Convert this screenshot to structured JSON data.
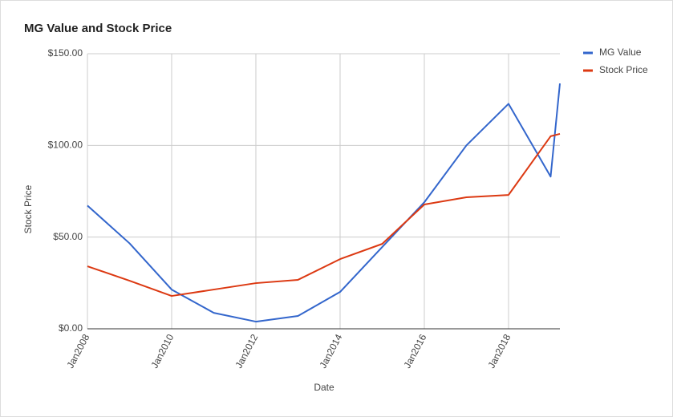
{
  "chart_data": {
    "type": "line",
    "title": "MG Value and Stock Price",
    "x_label": "Date",
    "y_label": "Stock Price",
    "x": [
      2008,
      2009,
      2010,
      2011,
      2012,
      2013,
      2014,
      2015,
      2016,
      2017,
      2018,
      2019,
      2019.22
    ],
    "series": [
      {
        "name": "MG Value",
        "color": "#3366cc",
        "values": [
          67.2,
          46.6,
          21.4,
          8.7,
          3.9,
          7,
          20.1,
          44.6,
          69,
          100,
          122.7,
          83,
          133.8
        ]
      },
      {
        "name": "Stock Price",
        "color": "#dc3912",
        "values": [
          34.1,
          26.2,
          17.9,
          21.4,
          24.9,
          26.7,
          38,
          46.3,
          67.8,
          71.7,
          73,
          105,
          106.3
        ]
      }
    ],
    "xlim": [
      2008,
      2019.22
    ],
    "xticks": [
      {
        "value": 2008,
        "label": "Jan2008"
      },
      {
        "value": 2010,
        "label": "Jan2010"
      },
      {
        "value": 2012,
        "label": "Jan2012"
      },
      {
        "value": 2014,
        "label": "Jan2014"
      },
      {
        "value": 2016,
        "label": "Jan2016"
      },
      {
        "value": 2018,
        "label": "Jan2018"
      }
    ],
    "ylim": [
      0,
      150
    ],
    "yticks": [
      {
        "value": 0,
        "label": "$0.00"
      },
      {
        "value": 50,
        "label": "$50.00"
      },
      {
        "value": 100,
        "label": "$100.00"
      },
      {
        "value": 150,
        "label": "$150.00"
      }
    ],
    "grid": true,
    "legend": "right"
  }
}
